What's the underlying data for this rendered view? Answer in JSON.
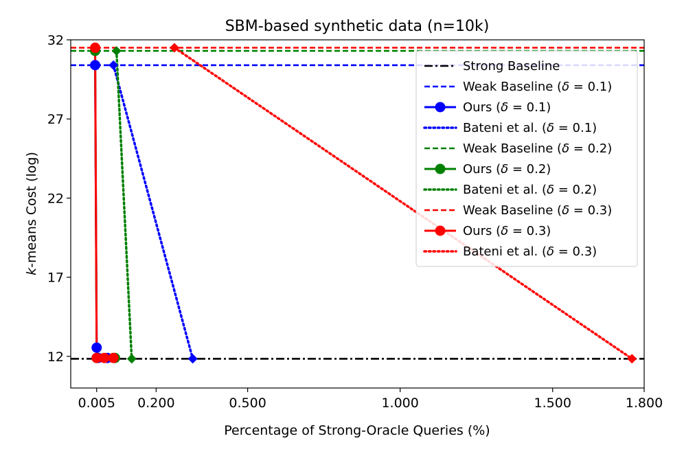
{
  "chart_data": {
    "type": "line",
    "title": "SBM-based synthetic data (n=10k)",
    "xlabel": "Percentage of Strong-Oracle Queries (%)",
    "ylabel": "k-means Cost (log)",
    "ylabel_italic": "k",
    "ylabel_rest": "-means Cost (log)",
    "xlim": [
      -0.08,
      1.8
    ],
    "ylim": [
      10.0,
      32.0
    ],
    "xticks": [
      0.005,
      0.2,
      0.5,
      1.0,
      1.5,
      1.8
    ],
    "xtick_labels": [
      "0.005",
      "0.200",
      "0.500",
      "1.000",
      "1.500",
      "1.800"
    ],
    "yticks": [
      12,
      17,
      22,
      27,
      32
    ],
    "ytick_labels": [
      "12",
      "17",
      "22",
      "27",
      "32"
    ],
    "grid": false,
    "legend_position": "upper-right",
    "series": [
      {
        "name": "Strong Baseline",
        "style": "dashdot",
        "color": "#000000",
        "marker": "none",
        "x": [
          -0.08,
          1.8
        ],
        "y": [
          11.85,
          11.85
        ]
      },
      {
        "name": "Weak Baseline (δ = 0.1)",
        "label_pre": "Weak Baseline (",
        "label_post": ")",
        "delta": "0.1",
        "style": "dashed",
        "color": "#0000ff",
        "marker": "none",
        "x": [
          -0.08,
          1.8
        ],
        "y": [
          30.4,
          30.4
        ]
      },
      {
        "name": "Ours (δ = 0.1)",
        "label_pre": "Ours (",
        "label_post": ")",
        "delta": "0.1",
        "style": "solid",
        "color": "#0000ff",
        "marker": "circle",
        "x": [
          0.0,
          0.005,
          0.01,
          0.04
        ],
        "y": [
          30.4,
          12.55,
          11.9,
          11.9
        ]
      },
      {
        "name": "Bateni et al. (δ = 0.1)",
        "label_pre": "Bateni et al. (",
        "label_post": ")",
        "delta": "0.1",
        "style": "dotted",
        "color": "#0000ff",
        "marker": "diamond",
        "x": [
          0.06,
          0.32
        ],
        "y": [
          30.4,
          11.85
        ]
      },
      {
        "name": "Weak Baseline (δ = 0.2)",
        "label_pre": "Weak Baseline (",
        "label_post": ")",
        "delta": "0.2",
        "style": "dashed",
        "color": "#008000",
        "marker": "none",
        "x": [
          -0.08,
          1.8
        ],
        "y": [
          31.3,
          31.3
        ]
      },
      {
        "name": "Ours (δ = 0.2)",
        "label_pre": "Ours (",
        "label_post": ")",
        "delta": "0.2",
        "style": "solid",
        "color": "#008000",
        "marker": "circle",
        "x": [
          0.0,
          0.005,
          0.065
        ],
        "y": [
          31.3,
          11.9,
          11.9
        ]
      },
      {
        "name": "Bateni et al. (δ = 0.2)",
        "label_pre": "Bateni et al. (",
        "label_post": ")",
        "delta": "0.2",
        "style": "dotted",
        "color": "#008000",
        "marker": "diamond",
        "x": [
          0.07,
          0.12
        ],
        "y": [
          31.3,
          11.85
        ]
      },
      {
        "name": "Weak Baseline (δ = 0.3)",
        "label_pre": "Weak Baseline (",
        "label_post": ")",
        "delta": "0.3",
        "style": "dashed",
        "color": "#ff0000",
        "marker": "none",
        "x": [
          -0.08,
          1.8
        ],
        "y": [
          31.5,
          31.5
        ]
      },
      {
        "name": "Ours (δ = 0.3)",
        "label_pre": "Ours (",
        "label_post": ")",
        "delta": "0.3",
        "style": "solid",
        "color": "#ff0000",
        "marker": "circle",
        "x": [
          0.0,
          0.005,
          0.03,
          0.06
        ],
        "y": [
          31.5,
          11.9,
          11.9,
          11.9
        ]
      },
      {
        "name": "Bateni et al. (δ = 0.3)",
        "label_pre": "Bateni et al. (",
        "label_post": ")",
        "delta": "0.3",
        "style": "dotted",
        "color": "#ff0000",
        "marker": "diamond",
        "x": [
          0.26,
          1.76
        ],
        "y": [
          31.5,
          11.85
        ]
      }
    ]
  }
}
